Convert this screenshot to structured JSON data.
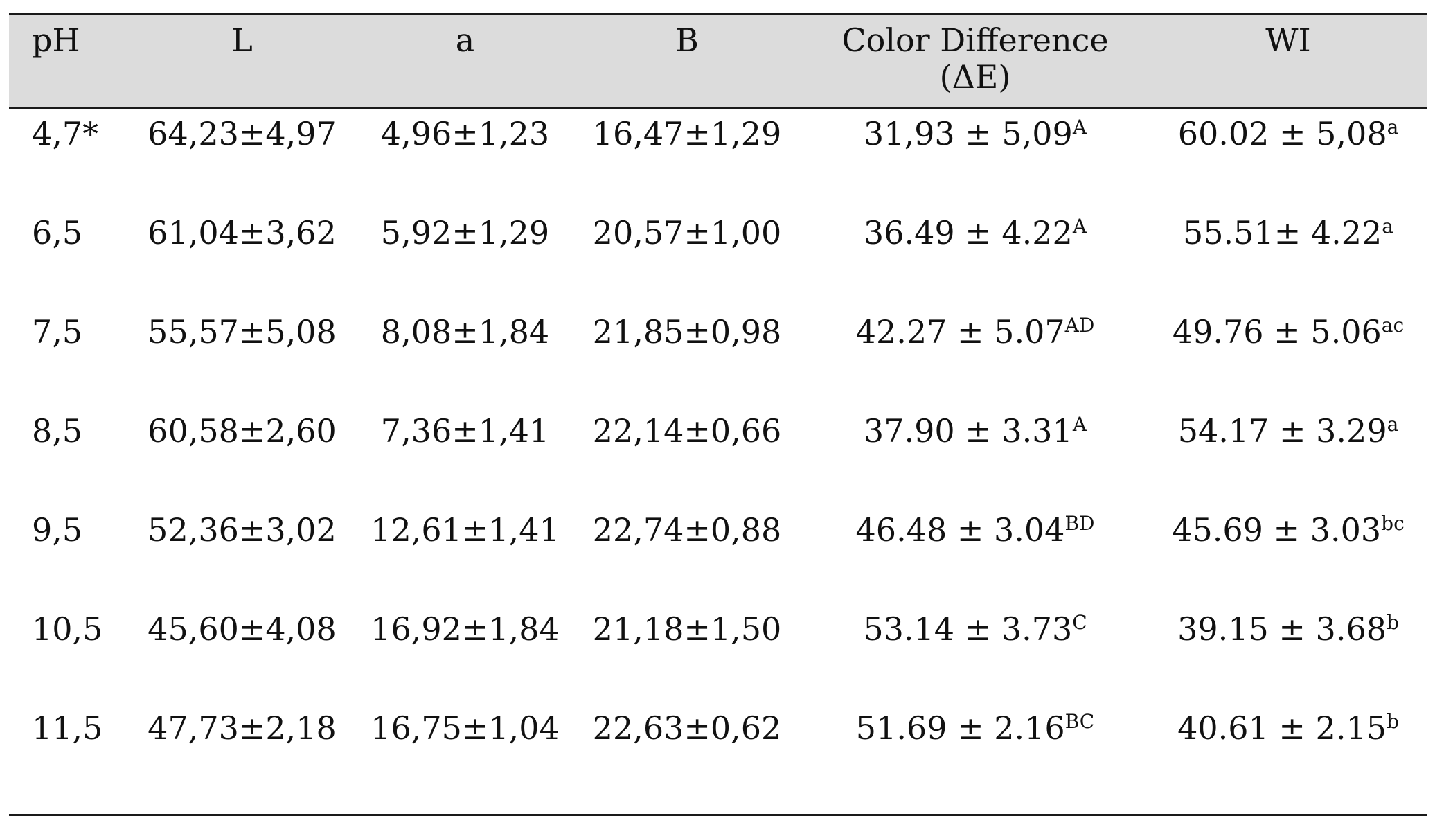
{
  "table": {
    "headers": [
      "pH",
      "L",
      "a",
      "B",
      "Color Difference (ΔE)",
      "WI"
    ],
    "rows": [
      {
        "ph": "4,7*",
        "l": "64,23±4,97",
        "a": "4,96±1,23",
        "b": "16,47±1,29",
        "de": "31,93 ± 5,09",
        "de_sup": "A",
        "wi": "60.02 ± 5,08",
        "wi_sup": "a"
      },
      {
        "ph": "6,5",
        "l": "61,04±3,62",
        "a": "5,92±1,29",
        "b": "20,57±1,00",
        "de": "36.49 ± 4.22",
        "de_sup": "A",
        "wi": "55.51± 4.22",
        "wi_sup": "a"
      },
      {
        "ph": "7,5",
        "l": "55,57±5,08",
        "a": "8,08±1,84",
        "b": "21,85±0,98",
        "de": "42.27 ± 5.07",
        "de_sup": "AD",
        "wi": "49.76 ± 5.06",
        "wi_sup": "ac"
      },
      {
        "ph": "8,5",
        "l": "60,58±2,60",
        "a": "7,36±1,41",
        "b": "22,14±0,66",
        "de": "37.90 ± 3.31",
        "de_sup": "A",
        "wi": "54.17 ± 3.29",
        "wi_sup": "a"
      },
      {
        "ph": "9,5",
        "l": "52,36±3,02",
        "a": "12,61±1,41",
        "b": "22,74±0,88",
        "de": "46.48 ± 3.04",
        "de_sup": "BD",
        "wi": "45.69 ± 3.03",
        "wi_sup": "bc"
      },
      {
        "ph": "10,5",
        "l": "45,60±4,08",
        "a": "16,92±1,84",
        "b": "21,18±1,50",
        "de": "53.14 ± 3.73",
        "de_sup": "C",
        "wi": "39.15 ± 3.68",
        "wi_sup": "b"
      },
      {
        "ph": "11,5",
        "l": "47,73±2,18",
        "a": "16,75±1,04",
        "b": "22,63±0,62",
        "de": "51.69 ± 2.16",
        "de_sup": "BC",
        "wi": "40.61 ± 2.15",
        "wi_sup": "b"
      }
    ]
  }
}
